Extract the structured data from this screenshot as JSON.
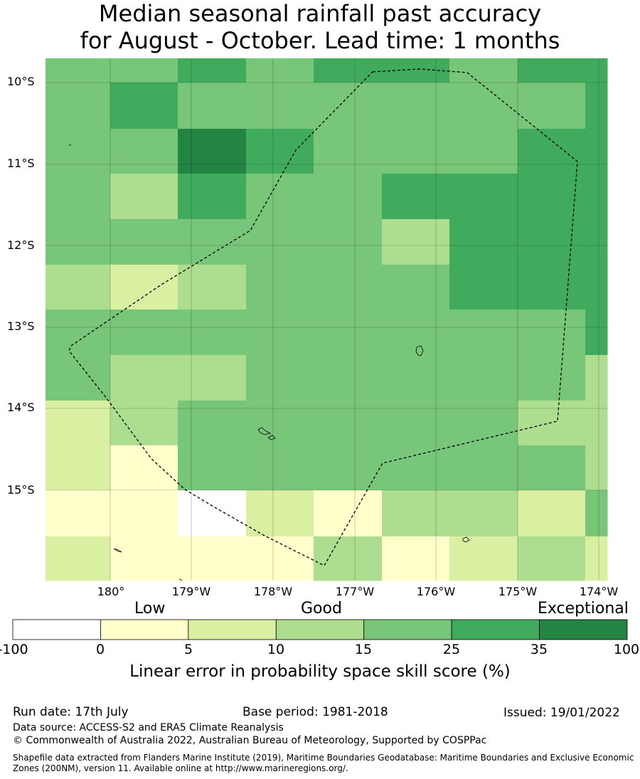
{
  "title": {
    "line1": "Median seasonal rainfall past accuracy",
    "line2": "for August - October. Lead time: 1 months"
  },
  "map": {
    "lat_labels": [
      "10°S",
      "11°S",
      "12°S",
      "13°S",
      "14°S",
      "15°S"
    ],
    "lon_labels": [
      "180°",
      "179°W",
      "178°W",
      "177°W",
      "176°W",
      "175°W",
      "174°W"
    ],
    "class_colors": [
      "#ffffff",
      "#ffffcc",
      "#d9f0a3",
      "#addd8e",
      "#78c679",
      "#41ab5d",
      "#238443"
    ],
    "grid": [
      [
        4,
        4,
        5,
        4,
        5,
        5,
        4,
        5,
        5
      ],
      [
        4,
        5,
        4,
        4,
        4,
        4,
        4,
        4,
        5
      ],
      [
        4,
        4,
        6,
        5,
        4,
        4,
        4,
        5,
        5
      ],
      [
        4,
        3,
        5,
        4,
        4,
        5,
        5,
        5,
        5
      ],
      [
        4,
        4,
        4,
        4,
        4,
        3,
        5,
        5,
        5
      ],
      [
        3,
        2,
        3,
        4,
        4,
        4,
        5,
        5,
        5
      ],
      [
        4,
        4,
        4,
        4,
        4,
        4,
        4,
        4,
        5
      ],
      [
        4,
        3,
        3,
        4,
        4,
        4,
        4,
        4,
        3
      ],
      [
        2,
        3,
        4,
        4,
        4,
        4,
        4,
        3,
        3
      ],
      [
        2,
        1,
        4,
        4,
        4,
        4,
        4,
        4,
        3
      ],
      [
        1,
        1,
        0,
        2,
        1,
        3,
        3,
        2,
        4
      ],
      [
        2,
        1,
        1,
        1,
        3,
        1,
        2,
        3,
        2
      ]
    ]
  },
  "legend": {
    "low": "Low",
    "good": "Good",
    "exceptional": "Exceptional",
    "ticks": [
      "-100",
      "0",
      "5",
      "10",
      "15",
      "25",
      "35",
      "100"
    ],
    "title": "Linear error in probability space skill score (%)"
  },
  "footer": {
    "run_date": "Run date: 17th July",
    "base_period": "Base period: 1981-2018",
    "issued": "Issued: 19/01/2022",
    "data_source": "Data source: ACCESS-S2 and ERA5 Climate Reanalysis",
    "copyright": "© Commonwealth of Australia 2022, Australian Bureau of Meteorology, Supported by COSPPac",
    "shapefile_line1": "Shapefile data extracted from Flanders Marine Institute (2019), Maritime Boundaries Geodatabase: Maritime Boundaries and Exclusive Economic",
    "shapefile_line2": "Zones (200NM), version 11. Available online at http://www.marineregions.org/."
  }
}
